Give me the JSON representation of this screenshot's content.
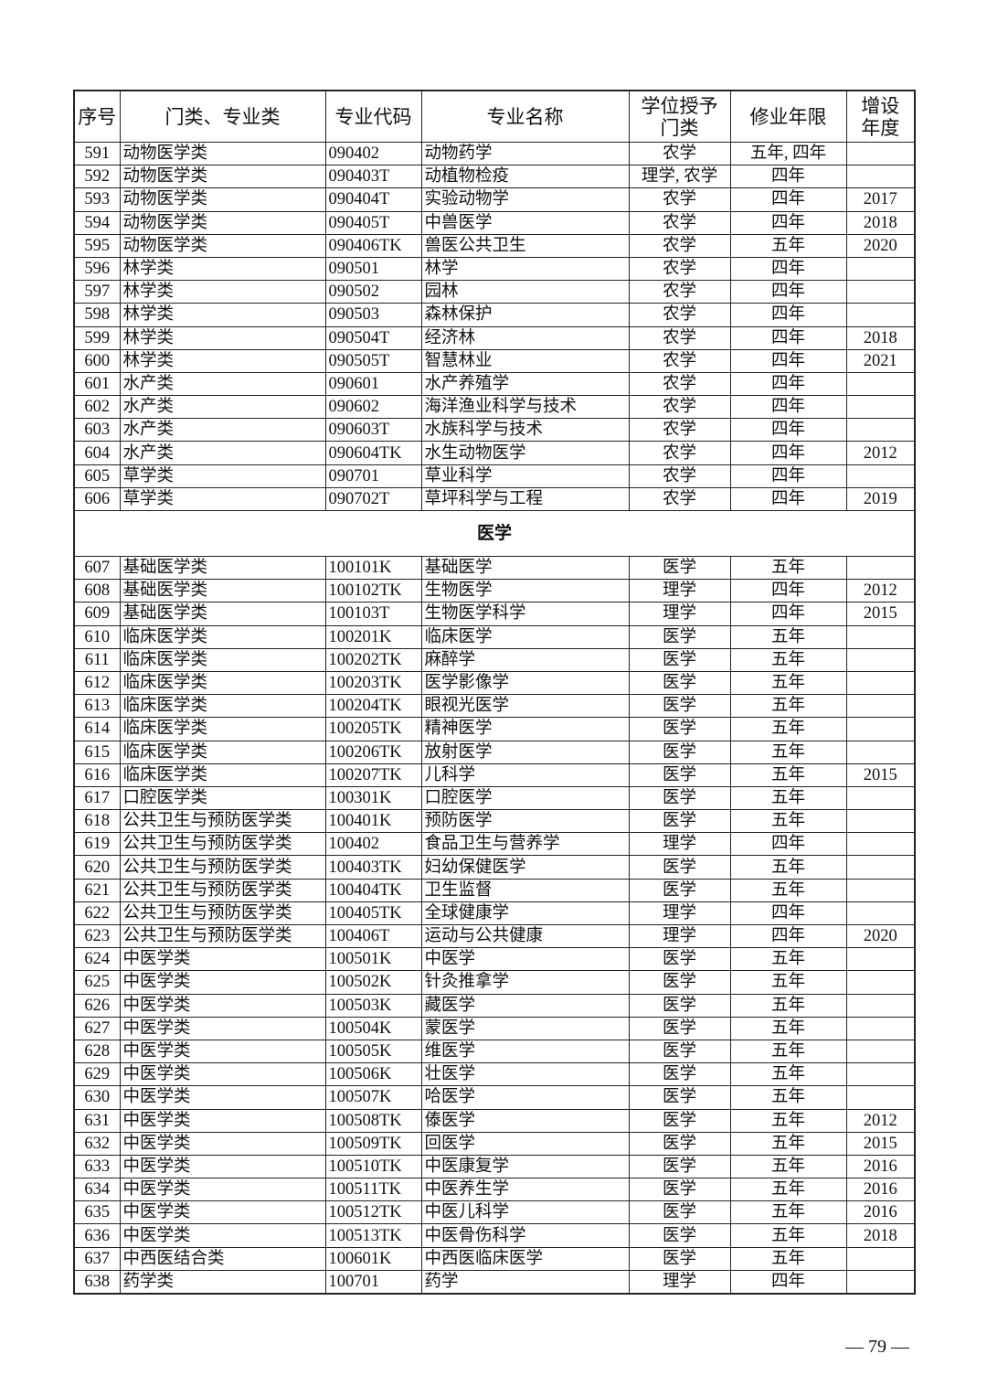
{
  "table": {
    "headers": [
      "序号",
      "门类、专业类",
      "专业代码",
      "专业名称",
      "学位授予门类",
      "修业年限",
      "增设年度"
    ],
    "header_lines": {
      "4": [
        "学位授予",
        "门类"
      ],
      "6": [
        "增设",
        "年度"
      ]
    },
    "groups": [
      {
        "section": "",
        "rows": [
          [
            "591",
            "动物医学类",
            "090402",
            "动物药学",
            "农学",
            "五年, 四年",
            ""
          ],
          [
            "592",
            "动物医学类",
            "090403T",
            "动植物检疫",
            "理学, 农学",
            "四年",
            ""
          ],
          [
            "593",
            "动物医学类",
            "090404T",
            "实验动物学",
            "农学",
            "四年",
            "2017"
          ],
          [
            "594",
            "动物医学类",
            "090405T",
            "中兽医学",
            "农学",
            "四年",
            "2018"
          ],
          [
            "595",
            "动物医学类",
            "090406TK",
            "兽医公共卫生",
            "农学",
            "五年",
            "2020"
          ],
          [
            "596",
            "林学类",
            "090501",
            "林学",
            "农学",
            "四年",
            ""
          ],
          [
            "597",
            "林学类",
            "090502",
            "园林",
            "农学",
            "四年",
            ""
          ],
          [
            "598",
            "林学类",
            "090503",
            "森林保护",
            "农学",
            "四年",
            ""
          ],
          [
            "599",
            "林学类",
            "090504T",
            "经济林",
            "农学",
            "四年",
            "2018"
          ],
          [
            "600",
            "林学类",
            "090505T",
            "智慧林业",
            "农学",
            "四年",
            "2021"
          ],
          [
            "601",
            "水产类",
            "090601",
            "水产养殖学",
            "农学",
            "四年",
            ""
          ],
          [
            "602",
            "水产类",
            "090602",
            "海洋渔业科学与技术",
            "农学",
            "四年",
            ""
          ],
          [
            "603",
            "水产类",
            "090603T",
            "水族科学与技术",
            "农学",
            "四年",
            ""
          ],
          [
            "604",
            "水产类",
            "090604TK",
            "水生动物医学",
            "农学",
            "四年",
            "2012"
          ],
          [
            "605",
            "草学类",
            "090701",
            "草业科学",
            "农学",
            "四年",
            ""
          ],
          [
            "606",
            "草学类",
            "090702T",
            "草坪科学与工程",
            "农学",
            "四年",
            "2019"
          ]
        ]
      },
      {
        "section": "医学",
        "rows": [
          [
            "607",
            "基础医学类",
            "100101K",
            "基础医学",
            "医学",
            "五年",
            ""
          ],
          [
            "608",
            "基础医学类",
            "100102TK",
            "生物医学",
            "理学",
            "四年",
            "2012"
          ],
          [
            "609",
            "基础医学类",
            "100103T",
            "生物医学科学",
            "理学",
            "四年",
            "2015"
          ],
          [
            "610",
            "临床医学类",
            "100201K",
            "临床医学",
            "医学",
            "五年",
            ""
          ],
          [
            "611",
            "临床医学类",
            "100202TK",
            "麻醉学",
            "医学",
            "五年",
            ""
          ],
          [
            "612",
            "临床医学类",
            "100203TK",
            "医学影像学",
            "医学",
            "五年",
            ""
          ],
          [
            "613",
            "临床医学类",
            "100204TK",
            "眼视光医学",
            "医学",
            "五年",
            ""
          ],
          [
            "614",
            "临床医学类",
            "100205TK",
            "精神医学",
            "医学",
            "五年",
            ""
          ],
          [
            "615",
            "临床医学类",
            "100206TK",
            "放射医学",
            "医学",
            "五年",
            ""
          ],
          [
            "616",
            "临床医学类",
            "100207TK",
            "儿科学",
            "医学",
            "五年",
            "2015"
          ],
          [
            "617",
            "口腔医学类",
            "100301K",
            "口腔医学",
            "医学",
            "五年",
            ""
          ],
          [
            "618",
            "公共卫生与预防医学类",
            "100401K",
            "预防医学",
            "医学",
            "五年",
            ""
          ],
          [
            "619",
            "公共卫生与预防医学类",
            "100402",
            "食品卫生与营养学",
            "理学",
            "四年",
            ""
          ],
          [
            "620",
            "公共卫生与预防医学类",
            "100403TK",
            "妇幼保健医学",
            "医学",
            "五年",
            ""
          ],
          [
            "621",
            "公共卫生与预防医学类",
            "100404TK",
            "卫生监督",
            "医学",
            "五年",
            ""
          ],
          [
            "622",
            "公共卫生与预防医学类",
            "100405TK",
            "全球健康学",
            "理学",
            "四年",
            ""
          ],
          [
            "623",
            "公共卫生与预防医学类",
            "100406T",
            "运动与公共健康",
            "理学",
            "四年",
            "2020"
          ],
          [
            "624",
            "中医学类",
            "100501K",
            "中医学",
            "医学",
            "五年",
            ""
          ],
          [
            "625",
            "中医学类",
            "100502K",
            "针灸推拿学",
            "医学",
            "五年",
            ""
          ],
          [
            "626",
            "中医学类",
            "100503K",
            "藏医学",
            "医学",
            "五年",
            ""
          ],
          [
            "627",
            "中医学类",
            "100504K",
            "蒙医学",
            "医学",
            "五年",
            ""
          ],
          [
            "628",
            "中医学类",
            "100505K",
            "维医学",
            "医学",
            "五年",
            ""
          ],
          [
            "629",
            "中医学类",
            "100506K",
            "壮医学",
            "医学",
            "五年",
            ""
          ],
          [
            "630",
            "中医学类",
            "100507K",
            "哈医学",
            "医学",
            "五年",
            ""
          ],
          [
            "631",
            "中医学类",
            "100508TK",
            "傣医学",
            "医学",
            "五年",
            "2012"
          ],
          [
            "632",
            "中医学类",
            "100509TK",
            "回医学",
            "医学",
            "五年",
            "2015"
          ],
          [
            "633",
            "中医学类",
            "100510TK",
            "中医康复学",
            "医学",
            "五年",
            "2016"
          ],
          [
            "634",
            "中医学类",
            "100511TK",
            "中医养生学",
            "医学",
            "五年",
            "2016"
          ],
          [
            "635",
            "中医学类",
            "100512TK",
            "中医儿科学",
            "医学",
            "五年",
            "2016"
          ],
          [
            "636",
            "中医学类",
            "100513TK",
            "中医骨伤科学",
            "医学",
            "五年",
            "2018"
          ],
          [
            "637",
            "中西医结合类",
            "100601K",
            "中西医临床医学",
            "医学",
            "五年",
            ""
          ],
          [
            "638",
            "药学类",
            "100701",
            "药学",
            "理学",
            "四年",
            ""
          ]
        ]
      }
    ]
  },
  "footer": {
    "page_number": "— 79 —"
  }
}
